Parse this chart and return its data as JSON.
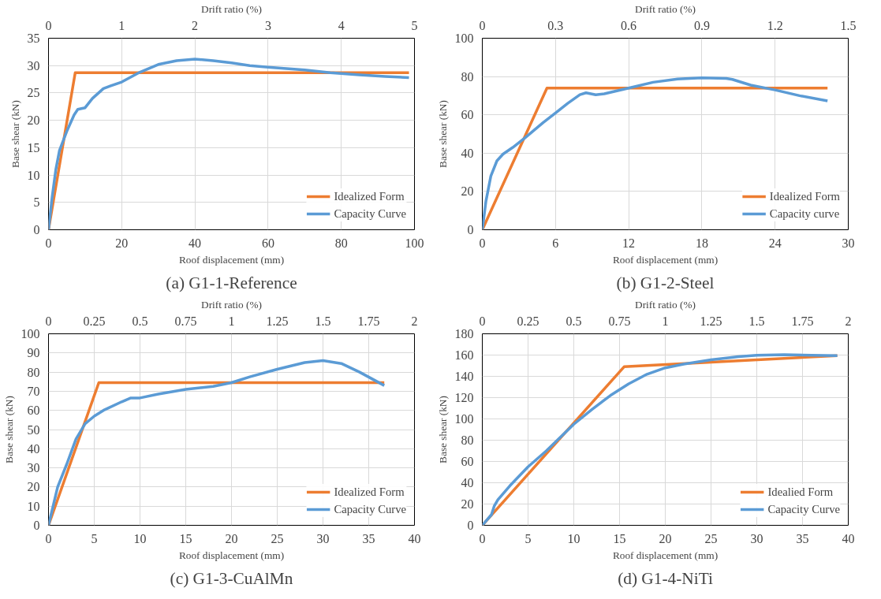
{
  "chart_data": [
    {
      "type": "line",
      "title": "(a) G1-1-Reference",
      "xlabel": "Roof displacement (mm)",
      "ylabel": "Base shear (kN)",
      "x2label": "Drift ratio (%)",
      "xlim": [
        0,
        100
      ],
      "xticks": [
        0,
        20,
        40,
        60,
        80,
        100
      ],
      "ylim": [
        0,
        35
      ],
      "yticks": [
        0,
        5,
        10,
        15,
        20,
        25,
        30,
        35
      ],
      "x2lim": [
        0,
        5
      ],
      "x2ticks": [
        0,
        1,
        2,
        3,
        4,
        5
      ],
      "grid": true,
      "legend": "bottom right",
      "marker": "none",
      "line_style": "solid",
      "series": [
        {
          "name": "Idealized Form",
          "color": "#ed7d31",
          "x": [
            0,
            7.3,
            98.5
          ],
          "values": [
            0,
            28.7,
            28.7
          ]
        },
        {
          "name": "Capacity Curve",
          "color": "#5b9bd5",
          "x": [
            0,
            1,
            2,
            3,
            5,
            7,
            8,
            10,
            12,
            15,
            17,
            20,
            25,
            30,
            35,
            40,
            45,
            50,
            55,
            60,
            70,
            77,
            85,
            92,
            98.5
          ],
          "values": [
            0,
            6,
            11,
            14.5,
            18,
            21,
            22,
            22.3,
            24,
            25.8,
            26.3,
            27,
            28.8,
            30.2,
            30.9,
            31.2,
            30.9,
            30.5,
            30.0,
            29.7,
            29.2,
            28.7,
            28.3,
            28.0,
            27.8
          ]
        }
      ]
    },
    {
      "type": "line",
      "title": "(b) G1-2-Steel",
      "xlabel": "Roof displacement (mm)",
      "ylabel": "Base shear (kN)",
      "x2label": "Drift ratio (%)",
      "xlim": [
        0,
        30
      ],
      "xticks": [
        0,
        6,
        12,
        18,
        24,
        30
      ],
      "ylim": [
        0,
        100
      ],
      "yticks": [
        0,
        20,
        40,
        60,
        80,
        100
      ],
      "x2lim": [
        0,
        1.5
      ],
      "x2ticks": [
        0,
        0.3,
        0.6,
        0.9,
        1.2,
        1.5
      ],
      "grid": true,
      "legend": "bottom right",
      "marker": "none",
      "line_style": "solid",
      "series": [
        {
          "name": "Idealized Form",
          "color": "#ed7d31",
          "x": [
            0,
            5.3,
            28.3
          ],
          "values": [
            0,
            74,
            74
          ]
        },
        {
          "name": "Capacity curve",
          "color": "#5b9bd5",
          "x": [
            0,
            0.3,
            0.7,
            1.2,
            1.7,
            2.5,
            3.5,
            5,
            6,
            7,
            8,
            8.5,
            9.3,
            10,
            12,
            14,
            16,
            18,
            20,
            20.5,
            22,
            24,
            26,
            28.3
          ],
          "values": [
            0,
            15,
            28,
            36,
            39.5,
            43,
            48,
            56,
            61,
            66,
            70.5,
            71.5,
            70.5,
            71,
            74,
            77,
            78.7,
            79.3,
            79,
            78.5,
            75.5,
            73,
            70,
            67.3
          ]
        }
      ]
    },
    {
      "type": "line",
      "title": "(c) G1-3-CuAlMn",
      "xlabel": "Roof displacement (mm)",
      "ylabel": "Base shear (kN)",
      "x2label": "Drift ratio (%)",
      "xlim": [
        0,
        40
      ],
      "xticks": [
        0,
        5,
        10,
        15,
        20,
        25,
        30,
        35,
        40
      ],
      "ylim": [
        0,
        100
      ],
      "yticks": [
        0,
        10,
        20,
        30,
        40,
        50,
        60,
        70,
        80,
        90,
        100
      ],
      "x2lim": [
        0,
        2
      ],
      "x2ticks": [
        0,
        0.25,
        0.5,
        0.75,
        1,
        1.25,
        1.5,
        1.75,
        2
      ],
      "grid": true,
      "legend": "bottom right",
      "marker": "none",
      "line_style": "solid",
      "series": [
        {
          "name": "Idealized Form",
          "color": "#ed7d31",
          "x": [
            0,
            5.5,
            36.7
          ],
          "values": [
            0,
            74.5,
            74.5
          ]
        },
        {
          "name": "Capacity Curve",
          "color": "#5b9bd5",
          "x": [
            0,
            1,
            2,
            3,
            4,
            5,
            6,
            8,
            9,
            10,
            12,
            15,
            18,
            20,
            22,
            25,
            28,
            30,
            32,
            34,
            36.7
          ],
          "values": [
            0,
            20,
            32,
            45,
            53,
            57,
            60,
            64.5,
            66.5,
            66.5,
            68.5,
            71,
            72.5,
            74.5,
            77.5,
            81.5,
            85,
            86,
            84.5,
            80,
            73
          ]
        }
      ]
    },
    {
      "type": "line",
      "title": "(d) G1-4-NiTi",
      "xlabel": "Roof displacement (mm)",
      "ylabel": "Base shear (kN)",
      "x2label": "Drift ratio (%)",
      "xlim": [
        0,
        40
      ],
      "xticks": [
        0,
        5,
        10,
        15,
        20,
        25,
        30,
        35,
        40
      ],
      "ylim": [
        0,
        180
      ],
      "yticks": [
        0,
        20,
        40,
        60,
        80,
        100,
        120,
        140,
        160,
        180
      ],
      "x2lim": [
        0,
        2
      ],
      "x2ticks": [
        0,
        0.25,
        0.5,
        0.75,
        1,
        1.25,
        1.5,
        1.75,
        2
      ],
      "grid": true,
      "legend": "bottom right",
      "marker": "none",
      "line_style": "solid",
      "series": [
        {
          "name": "Idealied Form",
          "color": "#ed7d31",
          "x": [
            0,
            15.5,
            38.8
          ],
          "values": [
            0,
            149,
            159.5
          ]
        },
        {
          "name": "Capacity Curve",
          "color": "#5b9bd5",
          "x": [
            0,
            1,
            1.3,
            1.7,
            3,
            5,
            7,
            10,
            12,
            14,
            16,
            18,
            20,
            22,
            25,
            28,
            30,
            33,
            36,
            38.8
          ],
          "values": [
            0,
            10,
            18,
            24,
            37,
            55,
            70,
            95,
            109,
            122,
            133,
            142,
            148,
            151.5,
            155.5,
            158.5,
            159.8,
            160.3,
            159.8,
            159.5
          ]
        }
      ]
    }
  ]
}
